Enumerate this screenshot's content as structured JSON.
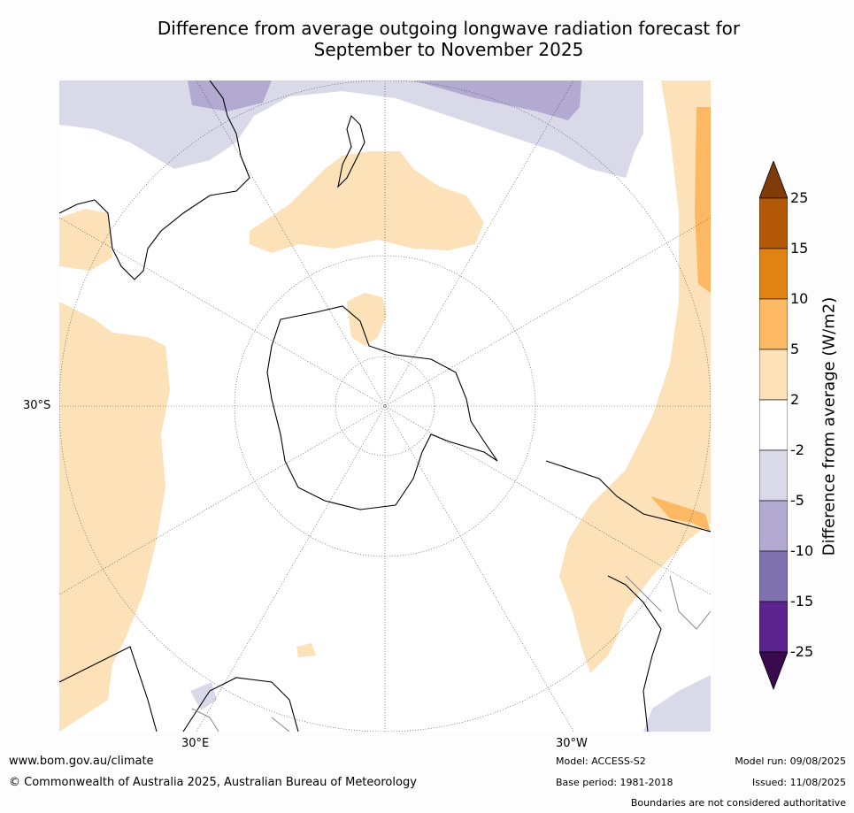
{
  "title": {
    "line1": "Difference from average outgoing longwave radiation forecast for",
    "line2": "September to November 2025"
  },
  "map": {
    "projection": "south-polar-stereographic",
    "graticule": "dotted",
    "labels": {
      "lat_30s": "30°S",
      "lon_30e": "30°E",
      "lon_30w": "30°W"
    }
  },
  "colorbar": {
    "label": "Difference from average (W/m2)",
    "ticks": [
      "25",
      "15",
      "10",
      "5",
      "2",
      "-2",
      "-5",
      "-10",
      "-15",
      "-25"
    ],
    "colors": [
      "#3a0a4e",
      "#5b2390",
      "#8072ae",
      "#b3aad1",
      "#d9d9ea",
      "#ffffff",
      "#fde1b8",
      "#fdb863",
      "#e08214",
      "#b35806",
      "#7f3b08"
    ],
    "bins": [
      "<-25",
      "-25 to -15",
      "-15 to -10",
      "-10 to -5",
      "-5 to -2",
      "-2 to 2",
      "2 to 5",
      "5 to 10",
      "10 to 15",
      "15 to 25",
      ">25"
    ]
  },
  "footer": {
    "url": "www.bom.gov.au/climate",
    "copyright": "© Commonwealth of Australia 2025, Australian Bureau of Meteorology",
    "model": "Model: ACCESS-S2",
    "base_period": "Base period: 1981-2018",
    "model_run": "Model run: 09/08/2025",
    "issued": "Issued: 11/08/2025",
    "disclaimer": "Boundaries are not considered authoritative"
  }
}
